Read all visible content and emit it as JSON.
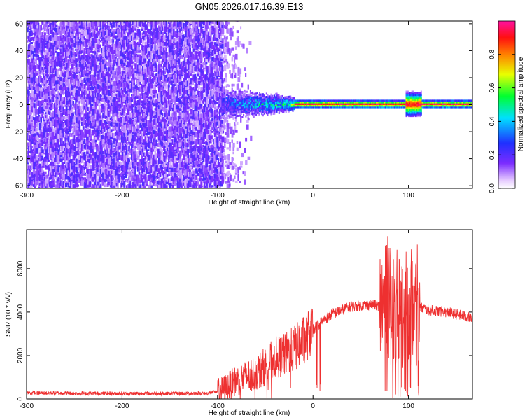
{
  "title": "GN05.2026.017.16.39.E13",
  "colors": {
    "spectrogram_background": "#7b2cff",
    "snr_line": "#ee3030",
    "axis": "#000000"
  },
  "chart_data": [
    {
      "type": "heatmap",
      "xlabel": "Height of straight line (km)",
      "ylabel": "Frequency (Hz)",
      "xlim": [
        -300,
        167
      ],
      "ylim": [
        -62,
        62
      ],
      "xticks": [
        "-300",
        "-200",
        "-100",
        "0",
        "100"
      ],
      "yticks": [
        "-60",
        "-40",
        "-20",
        "0",
        "20",
        "40",
        "60"
      ],
      "colorbar": {
        "label": "Normalized spectral amplitude",
        "range": [
          0,
          1
        ],
        "ticks": [
          "0.0",
          "0.2",
          "0.4",
          "0.6",
          "0.8"
        ],
        "colormap": "rainbow (violet → blue → cyan → green → yellow → orange → red → magenta)"
      },
      "features": {
        "broadband_noise_region_km": [
          -300,
          -95
        ],
        "signal_onset_km": -95,
        "signal_center_frequency_hz": 0,
        "strong_carrier_region_km": [
          -20,
          167
        ],
        "carrier_amplitude": 0.95,
        "disturbance_near_km": 105
      }
    },
    {
      "type": "line",
      "xlabel": "Height of straight line (km)",
      "ylabel": "SNR (10 * v/v)",
      "xlim": [
        -300,
        167
      ],
      "ylim": [
        0,
        7800
      ],
      "xticks": [
        "-300",
        "-200",
        "-100",
        "0",
        "100"
      ],
      "yticks": [
        "0",
        "2000",
        "4000",
        "6000"
      ],
      "series": [
        {
          "x": [
            -300,
            -250,
            -200,
            -150,
            -110,
            -100,
            -90,
            -80,
            -70,
            -60,
            -50,
            -40,
            -30,
            -20,
            -10,
            0,
            10,
            20,
            30,
            40,
            50,
            60,
            70,
            75,
            80,
            85,
            90,
            95,
            100,
            105,
            110,
            120,
            130,
            140,
            150,
            160,
            167
          ],
          "y": [
            280,
            260,
            250,
            250,
            260,
            350,
            550,
            850,
            1000,
            1200,
            1500,
            1900,
            2000,
            2300,
            2700,
            3200,
            3600,
            3900,
            4100,
            4250,
            4300,
            4350,
            4300,
            4250,
            4200,
            4200,
            4150,
            4100,
            4100,
            4150,
            4250,
            4100,
            4050,
            4000,
            3900,
            3800,
            3700
          ]
        }
      ]
    }
  ]
}
